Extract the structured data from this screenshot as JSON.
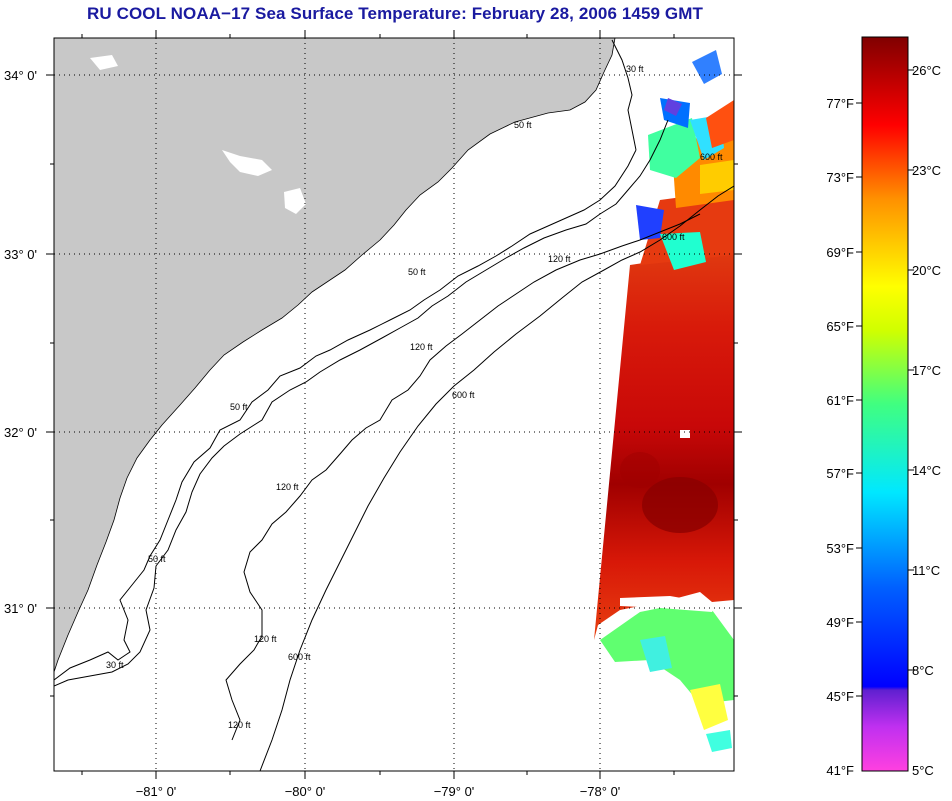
{
  "title": "RU COOL  NOAA−17  Sea Surface Temperature:  February 28, 2006 1459 GMT",
  "map": {
    "lat_labels": [
      "34° 0'",
      "33° 0'",
      "32° 0'",
      "31° 0'"
    ],
    "lon_labels": [
      "−81° 0'",
      "−80° 0'",
      "−79° 0'",
      "−78° 0'"
    ],
    "contour_labels": [
      "30 ft",
      "50 ft",
      "50 ft",
      "50 ft",
      "50 ft",
      "120 ft",
      "120 ft",
      "120 ft",
      "120 ft",
      "120 ft",
      "600 ft",
      "600 ft",
      "600 ft",
      "600 ft",
      "30 ft"
    ]
  },
  "colorbar": {
    "f_labels": [
      "77°F",
      "73°F",
      "69°F",
      "65°F",
      "61°F",
      "57°F",
      "53°F",
      "49°F",
      "45°F",
      "41°F"
    ],
    "c_labels": [
      "26°C",
      "23°C",
      "20°C",
      "17°C",
      "14°C",
      "11°C",
      "8°C",
      "5°C"
    ]
  },
  "colors": {
    "title": "#1a1aa0",
    "land": "#c8c8c8",
    "water": "#ffffff"
  }
}
